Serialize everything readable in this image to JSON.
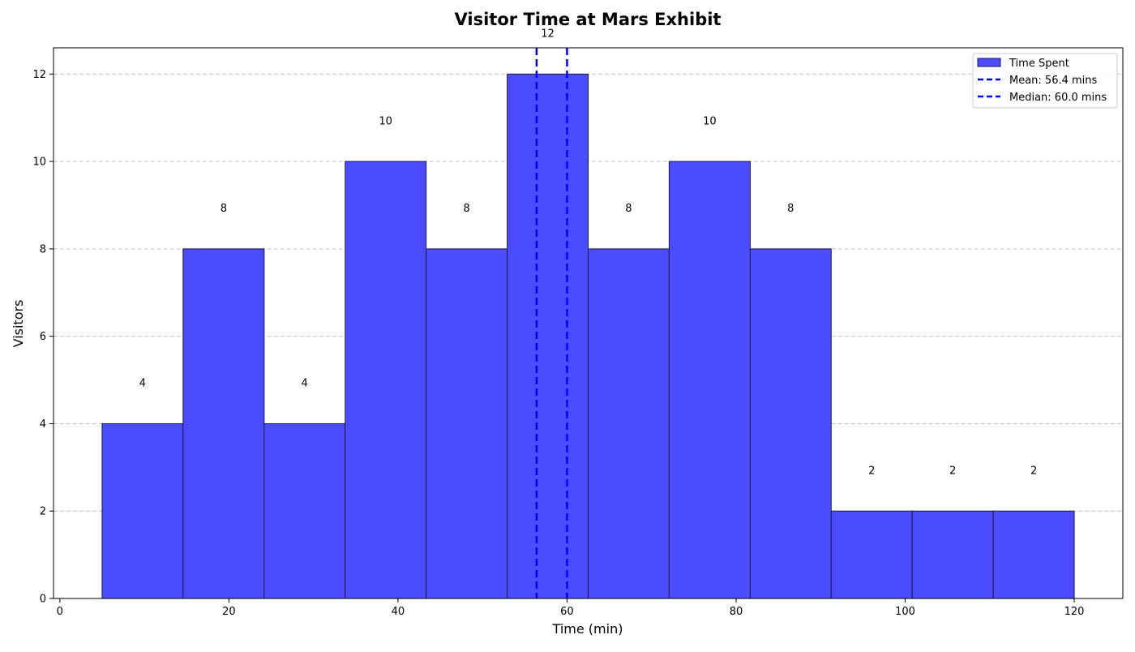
{
  "chart_data": {
    "type": "bar",
    "title": "Visitor Time at Mars Exhibit",
    "xlabel": "Time (min)",
    "ylabel": "Visitors",
    "xlim": [
      -0.75,
      125.75
    ],
    "ylim": [
      0,
      12.6
    ],
    "xticks": [
      0,
      20,
      40,
      60,
      80,
      100,
      120
    ],
    "yticks": [
      0,
      2,
      4,
      6,
      8,
      10,
      12
    ],
    "bin_edges": [
      5,
      14.58,
      24.17,
      33.75,
      43.33,
      52.92,
      62.5,
      72.08,
      81.67,
      91.25,
      100.83,
      110.42,
      120
    ],
    "values": [
      4,
      8,
      4,
      10,
      8,
      12,
      8,
      10,
      8,
      2,
      2,
      2
    ],
    "bar_labels": [
      "4",
      "8",
      "4",
      "10",
      "8",
      "12",
      "8",
      "10",
      "8",
      "2",
      "2",
      "2"
    ],
    "series": [
      {
        "name": "Time Spent",
        "color": "#4b4bff"
      }
    ],
    "reference_lines": [
      {
        "name": "Mean: 56.4 mins",
        "value": 56.4,
        "color": "#0000ff",
        "style": "dashed"
      },
      {
        "name": "Median: 60.0 mins",
        "value": 60.0,
        "color": "#0000ff",
        "style": "dashed"
      }
    ],
    "grid": {
      "y": true,
      "x": false
    },
    "legend_position": "top-right"
  }
}
